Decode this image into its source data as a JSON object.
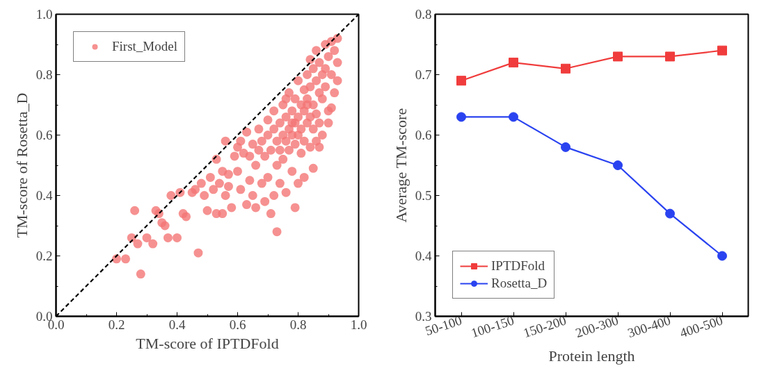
{
  "chart_data": [
    {
      "type": "scatter",
      "xlabel": "TM-score of IPTDFold",
      "ylabel": "TM-score of Rosetta_D",
      "xlim": [
        0,
        1
      ],
      "ylim": [
        0,
        1
      ],
      "xticks": [
        {
          "value": 0,
          "label": "0.0"
        },
        0.2,
        0.4,
        0.6,
        0.8,
        {
          "value": 1,
          "label": "1.0"
        }
      ],
      "yticks": [
        {
          "value": 0,
          "label": "0.0"
        },
        0.2,
        0.4,
        0.6,
        0.8,
        {
          "value": 1,
          "label": "1.0"
        }
      ],
      "grid": false,
      "legend": "top left",
      "marker": "circle",
      "series": [
        {
          "name": "First_Model",
          "color": "#f47676",
          "x": [
            0.2,
            0.23,
            0.25,
            0.26,
            0.27,
            0.28,
            0.3,
            0.32,
            0.33,
            0.34,
            0.35,
            0.36,
            0.37,
            0.38,
            0.4,
            0.41,
            0.42,
            0.43,
            0.45,
            0.46,
            0.47,
            0.48,
            0.49,
            0.5,
            0.51,
            0.52,
            0.53,
            0.53,
            0.54,
            0.55,
            0.55,
            0.56,
            0.56,
            0.57,
            0.57,
            0.58,
            0.59,
            0.6,
            0.6,
            0.61,
            0.61,
            0.62,
            0.63,
            0.63,
            0.64,
            0.64,
            0.65,
            0.65,
            0.66,
            0.66,
            0.67,
            0.67,
            0.68,
            0.68,
            0.69,
            0.69,
            0.7,
            0.7,
            0.7,
            0.71,
            0.71,
            0.72,
            0.72,
            0.72,
            0.73,
            0.73,
            0.73,
            0.74,
            0.74,
            0.74,
            0.75,
            0.75,
            0.75,
            0.76,
            0.76,
            0.76,
            0.77,
            0.77,
            0.77,
            0.78,
            0.78,
            0.78,
            0.79,
            0.79,
            0.79,
            0.79,
            0.8,
            0.8,
            0.8,
            0.8,
            0.81,
            0.81,
            0.81,
            0.82,
            0.82,
            0.82,
            0.82,
            0.83,
            0.83,
            0.83,
            0.84,
            0.84,
            0.84,
            0.84,
            0.85,
            0.85,
            0.85,
            0.85,
            0.86,
            0.86,
            0.86,
            0.86,
            0.87,
            0.87,
            0.87,
            0.87,
            0.88,
            0.88,
            0.88,
            0.89,
            0.89,
            0.89,
            0.9,
            0.9,
            0.9,
            0.91,
            0.91,
            0.91,
            0.92,
            0.93,
            0.93,
            0.93,
            0.92,
            0.83,
            0.78,
            0.76
          ],
          "values": [
            0.19,
            0.19,
            0.26,
            0.35,
            0.24,
            0.14,
            0.26,
            0.24,
            0.35,
            0.34,
            0.31,
            0.3,
            0.26,
            0.4,
            0.26,
            0.41,
            0.34,
            0.33,
            0.41,
            0.42,
            0.21,
            0.44,
            0.4,
            0.35,
            0.46,
            0.42,
            0.34,
            0.52,
            0.44,
            0.48,
            0.34,
            0.4,
            0.58,
            0.47,
            0.43,
            0.36,
            0.53,
            0.48,
            0.56,
            0.42,
            0.58,
            0.54,
            0.37,
            0.61,
            0.45,
            0.53,
            0.4,
            0.57,
            0.36,
            0.5,
            0.55,
            0.62,
            0.44,
            0.58,
            0.53,
            0.38,
            0.46,
            0.6,
            0.65,
            0.34,
            0.55,
            0.4,
            0.62,
            0.68,
            0.28,
            0.5,
            0.58,
            0.64,
            0.55,
            0.44,
            0.7,
            0.6,
            0.52,
            0.66,
            0.58,
            0.41,
            0.62,
            0.74,
            0.55,
            0.68,
            0.6,
            0.48,
            0.72,
            0.64,
            0.57,
            0.36,
            0.78,
            0.66,
            0.6,
            0.44,
            0.7,
            0.62,
            0.54,
            0.75,
            0.68,
            0.58,
            0.46,
            0.8,
            0.72,
            0.64,
            0.85,
            0.76,
            0.66,
            0.56,
            0.82,
            0.7,
            0.62,
            0.49,
            0.88,
            0.78,
            0.67,
            0.58,
            0.84,
            0.74,
            0.64,
            0.56,
            0.8,
            0.72,
            0.6,
            0.9,
            0.82,
            0.76,
            0.86,
            0.68,
            0.64,
            0.91,
            0.8,
            0.69,
            0.88,
            0.92,
            0.84,
            0.78,
            0.74,
            0.7,
            0.64,
            0.72
          ]
        },
        {
          "type": "line",
          "color": "#000000",
          "line_style": "dashed",
          "marker": "none",
          "x": [
            0,
            1
          ],
          "values": [
            0,
            1
          ]
        }
      ]
    },
    {
      "type": "line",
      "xlabel": "Protein length",
      "ylabel": "Average TM-score",
      "ylim": [
        0.3,
        0.8
      ],
      "yticks": [
        0.3,
        0.4,
        0.5,
        0.6,
        0.7,
        0.8
      ],
      "categories": [
        "50-100",
        "100-150",
        "150-200",
        "200-300",
        "300-400",
        "400-500"
      ],
      "grid": false,
      "legend": "bottom left",
      "series": [
        {
          "name": "IPTDFold",
          "color": "#f03c3c",
          "marker": "square",
          "values": [
            0.69,
            0.72,
            0.71,
            0.73,
            0.73,
            0.74
          ]
        },
        {
          "name": "Rosetta_D",
          "color": "#2a43f0",
          "marker": "circle",
          "values": [
            0.63,
            0.63,
            0.58,
            0.55,
            0.47,
            0.4
          ]
        }
      ]
    }
  ]
}
